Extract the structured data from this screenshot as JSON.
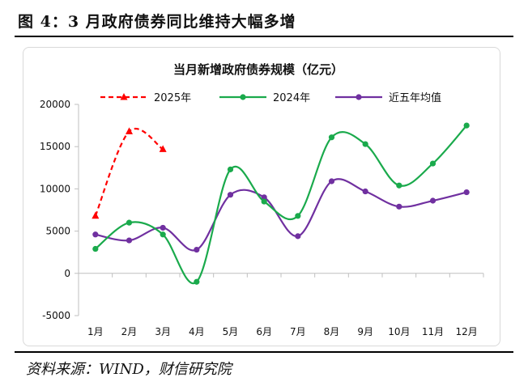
{
  "figure": {
    "title": "图 4：3 月政府债券同比维持大幅多增",
    "source": "资料来源：WIND，财信研究院"
  },
  "chart_data": {
    "type": "line",
    "title": "当月新增政府债券规模（亿元）",
    "categories": [
      "1月",
      "2月",
      "3月",
      "4月",
      "5月",
      "6月",
      "7月",
      "8月",
      "9月",
      "10月",
      "11月",
      "12月"
    ],
    "ylim": [
      -5000,
      20000
    ],
    "yticks": [
      -5000,
      0,
      5000,
      10000,
      15000,
      20000
    ],
    "grid": false,
    "legend_position": "top",
    "series": [
      {
        "name": "2025年",
        "color": "#ff0000",
        "style": "dashed",
        "marker": "triangle",
        "smooth": true,
        "values": [
          6800,
          16800,
          14700,
          null,
          null,
          null,
          null,
          null,
          null,
          null,
          null,
          null
        ]
      },
      {
        "name": "2024年",
        "color": "#1aaa4c",
        "style": "solid",
        "marker": "circle",
        "smooth": true,
        "values": [
          2900,
          6000,
          4600,
          -1000,
          12300,
          8500,
          6800,
          16100,
          15300,
          10400,
          13000,
          17500
        ]
      },
      {
        "name": "近五年均值",
        "color": "#7030a0",
        "style": "solid",
        "marker": "circle",
        "smooth": true,
        "values": [
          4600,
          3900,
          5400,
          2800,
          9300,
          9000,
          4400,
          10900,
          9700,
          7900,
          8600,
          9600
        ]
      }
    ]
  }
}
